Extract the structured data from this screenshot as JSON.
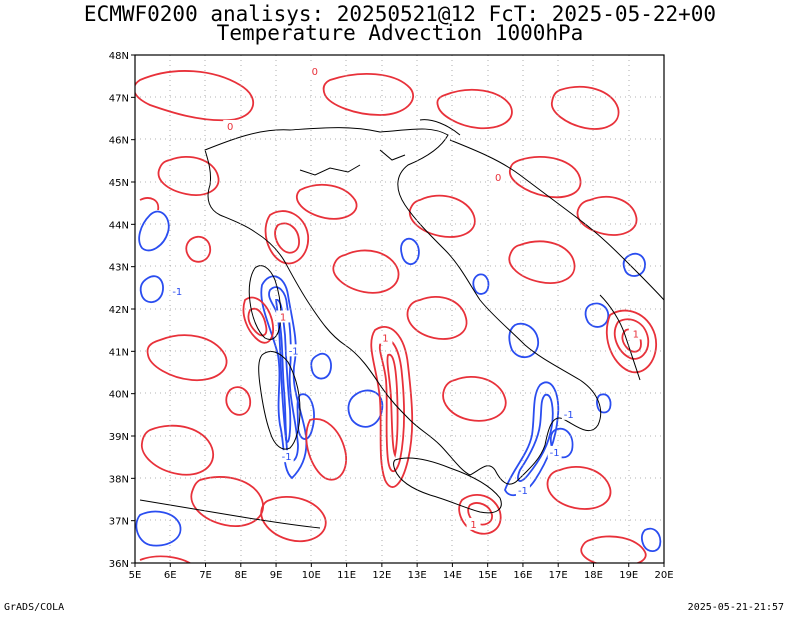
{
  "title_line1": "ECMWF0200 analisys: 20250521@12 FcT: 2025-05-22+00",
  "title_line2": "Temperature Advection 1000hPa",
  "credit": "GrADS/COLA",
  "timestamp": "2025-05-21-21:57",
  "map": {
    "lon_range": [
      5,
      20
    ],
    "lat_range": [
      36,
      48
    ],
    "lon_labels": [
      "5E",
      "6E",
      "7E",
      "8E",
      "9E",
      "10E",
      "11E",
      "12E",
      "13E",
      "14E",
      "15E",
      "16E",
      "17E",
      "18E",
      "19E",
      "20E"
    ],
    "lat_labels": [
      "36N",
      "37N",
      "38N",
      "39N",
      "40N",
      "41N",
      "42N",
      "43N",
      "44N",
      "45N",
      "46N",
      "47N",
      "48N"
    ],
    "colors": {
      "warm_advection": "#e8313a",
      "cold_advection": "#2a4df0",
      "coastline": "#000000",
      "grid": "#9a9a9a"
    },
    "contour_labels": [
      {
        "text": "0",
        "lon": 7.7,
        "lat": 46.3
      },
      {
        "text": "0",
        "lon": 15.3,
        "lat": 45.1
      },
      {
        "text": "0",
        "lon": 10.1,
        "lat": 47.6
      },
      {
        "text": "1",
        "lon": 9.2,
        "lat": 41.8
      },
      {
        "text": "-1",
        "lon": 9.5,
        "lat": 41.0
      },
      {
        "text": "1",
        "lon": 12.1,
        "lat": 41.3
      },
      {
        "text": "-1",
        "lon": 9.3,
        "lat": 38.5
      },
      {
        "text": "-1",
        "lon": 16.9,
        "lat": 38.6
      },
      {
        "text": "-1",
        "lon": 16.0,
        "lat": 37.7
      },
      {
        "text": "1",
        "lon": 19.2,
        "lat": 41.4
      },
      {
        "text": "-1",
        "lon": 17.3,
        "lat": 39.5
      },
      {
        "text": "1",
        "lon": 14.6,
        "lat": 36.9
      },
      {
        "text": "-1",
        "lon": 6.2,
        "lat": 42.4
      }
    ]
  }
}
